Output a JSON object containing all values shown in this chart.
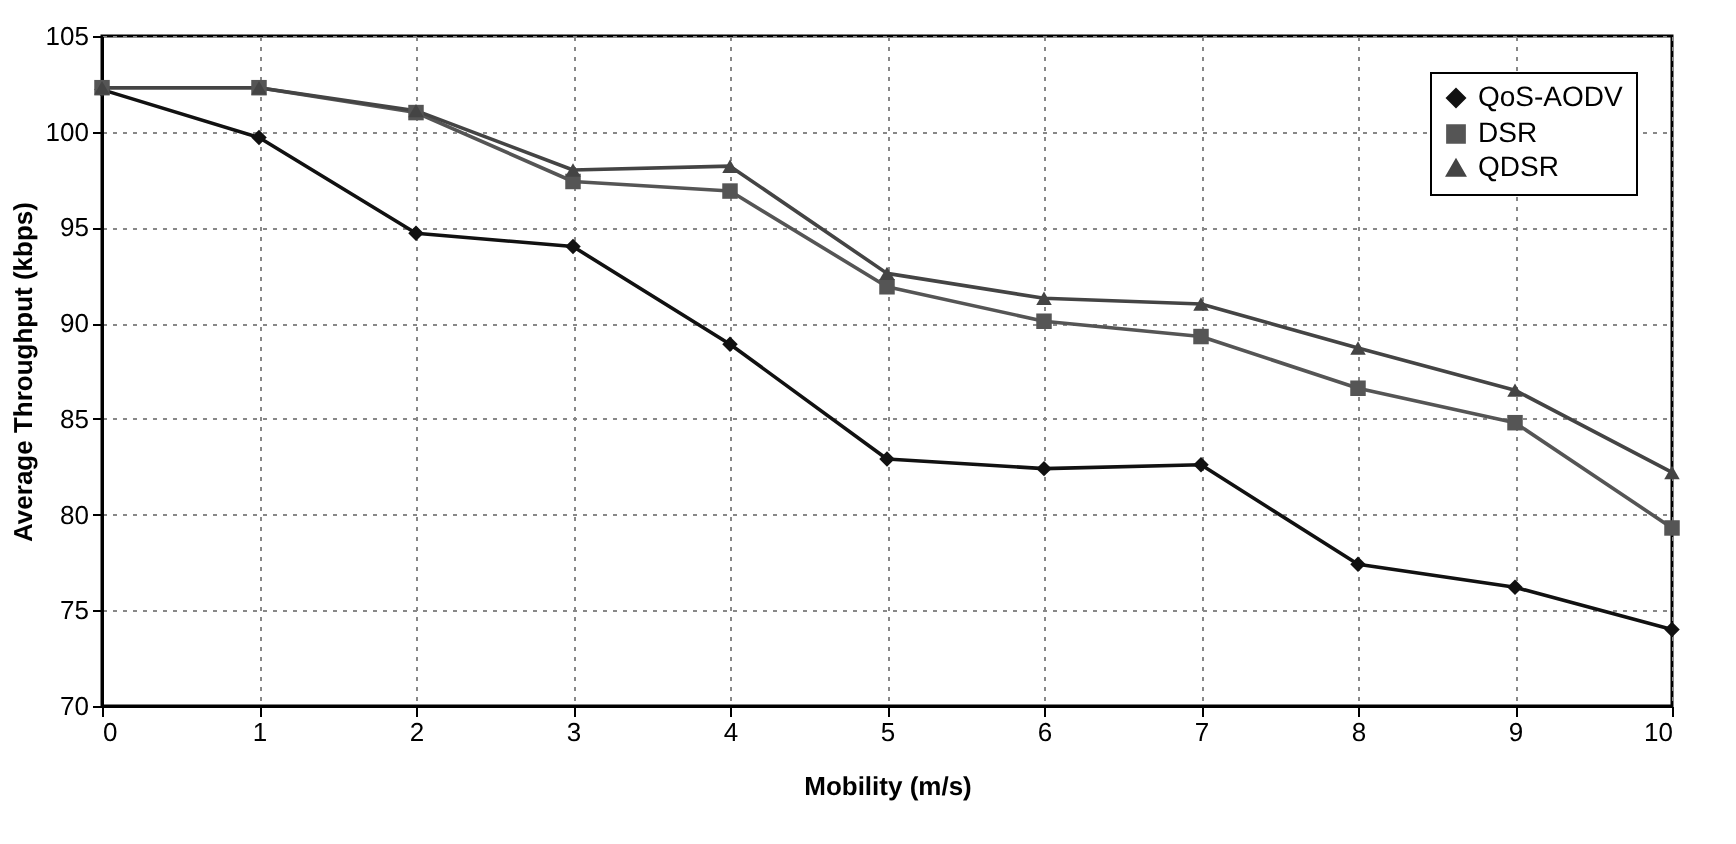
{
  "chart_data": {
    "type": "line",
    "xlabel": "Mobility (m/s)",
    "ylabel": "Average Throughput (kbps)",
    "x": [
      0,
      1,
      2,
      3,
      4,
      5,
      6,
      7,
      8,
      9,
      10
    ],
    "series": [
      {
        "name": "QoS-AODV",
        "color": "#111111",
        "marker": "diamond",
        "values": [
          102.2,
          99.7,
          94.7,
          94.0,
          88.9,
          82.9,
          82.4,
          82.6,
          77.4,
          76.2,
          74.0
        ]
      },
      {
        "name": "DSR",
        "color": "#555555",
        "marker": "square",
        "values": [
          102.3,
          102.3,
          101.0,
          97.4,
          96.9,
          91.9,
          90.1,
          89.3,
          86.6,
          84.8,
          79.3
        ]
      },
      {
        "name": "QDSR",
        "color": "#444444",
        "marker": "triangle",
        "values": [
          102.3,
          102.3,
          101.1,
          98.0,
          98.2,
          92.6,
          91.3,
          91.0,
          88.7,
          86.5,
          82.2
        ]
      }
    ],
    "xlim": [
      0,
      10
    ],
    "xticks": [
      0,
      1,
      2,
      3,
      4,
      5,
      6,
      7,
      8,
      9,
      10
    ],
    "ylim": [
      70,
      105
    ],
    "yticks": [
      70,
      75,
      80,
      85,
      90,
      95,
      100,
      105
    ],
    "grid": true,
    "legend": "top right",
    "line_style": "solid"
  }
}
